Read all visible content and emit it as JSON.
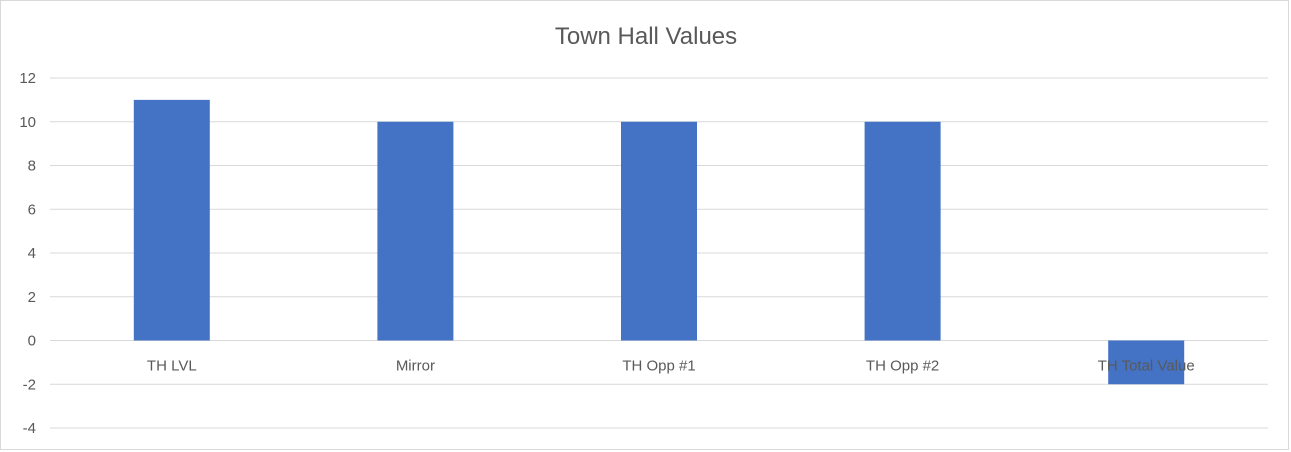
{
  "chart_data": {
    "type": "bar",
    "title": "Town Hall Values",
    "categories": [
      "TH LVL",
      "Mirror",
      "TH Opp #1",
      "TH Opp #2",
      "TH Total Value"
    ],
    "values": [
      11,
      10,
      10,
      10,
      -2
    ],
    "ylim": [
      -4,
      12
    ],
    "yticks": [
      -4,
      -2,
      0,
      2,
      4,
      6,
      8,
      10,
      12
    ],
    "bar_color": "#4472c4",
    "grid_color": "#d9d9d9",
    "grid": true,
    "legend": "none"
  }
}
